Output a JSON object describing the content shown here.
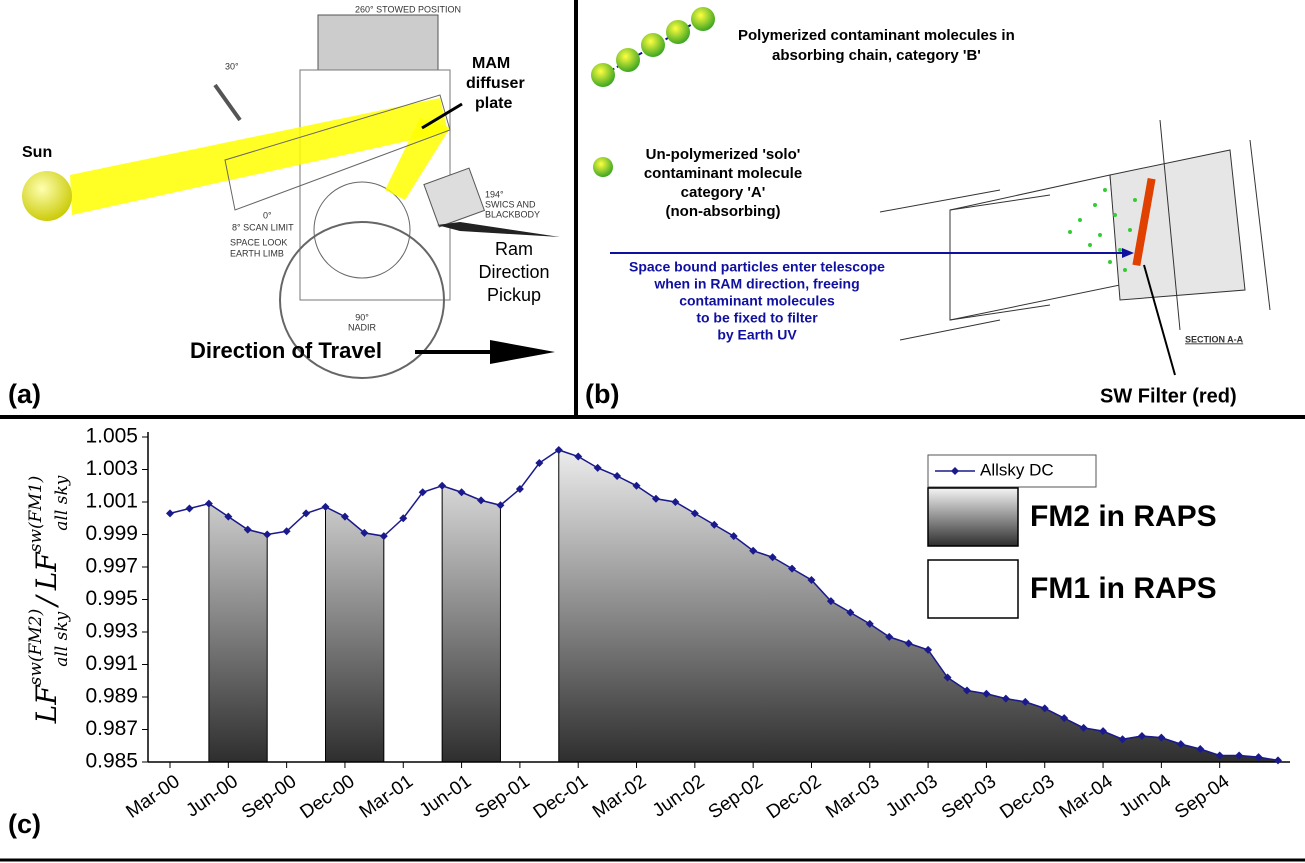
{
  "panels": {
    "a": {
      "label": "(a)",
      "sun": "Sun",
      "mam": [
        "MAM",
        "diffuser",
        "plate"
      ],
      "stowed": "260° STOWED POSITION",
      "angle30": "30°",
      "swics": [
        "194°",
        "SWICS AND",
        "BLACKBODY"
      ],
      "zero": "0°",
      "scan": "8° SCAN LIMIT",
      "space": "SPACE LOOK",
      "limb": "EARTH LIMB",
      "nadir": [
        "90°",
        "NADIR"
      ],
      "ram": [
        "Ram",
        "Direction",
        "Pickup"
      ],
      "travel": "Direction of Travel"
    },
    "b": {
      "label": "(b)",
      "poly": [
        "Polymerized contaminant molecules in",
        "absorbing chain, category 'B'"
      ],
      "solo": [
        "Un-polymerized 'solo'",
        "contaminant molecule",
        "category 'A'",
        "(non-absorbing)"
      ],
      "space": [
        "Space bound particles enter telescope",
        "when in RAM direction, freeing",
        "contaminant molecules",
        "to be fixed to filter",
        "by Earth UV"
      ],
      "filter": "SW Filter (red)",
      "section": "SECTION A-A"
    },
    "c": {
      "label": "(c)"
    }
  },
  "chart_data": {
    "type": "area-line",
    "y_label": {
      "main1": "LF",
      "sup1": "sw(FM2)",
      "sub1": "all sky",
      "sep": "/",
      "main2": "LF",
      "sup2": "sw(FM1)",
      "sub2": "all sky"
    },
    "categories": [
      "Mar-00",
      null,
      null,
      "Jun-00",
      null,
      null,
      "Sep-00",
      null,
      null,
      "Dec-00",
      null,
      null,
      "Mar-01",
      null,
      null,
      "Jun-01",
      null,
      null,
      "Sep-01",
      null,
      null,
      "Dec-01",
      null,
      null,
      "Mar-02",
      null,
      null,
      "Jun-02",
      null,
      null,
      "Sep-02",
      null,
      null,
      "Dec-02",
      null,
      null,
      "Mar-03",
      null,
      null,
      "Jun-03",
      null,
      null,
      "Sep-03",
      null,
      null,
      "Dec-03",
      null,
      null,
      "Mar-04",
      null,
      null,
      "Jun-04",
      null,
      null,
      "Sep-04",
      null,
      null,
      null
    ],
    "series": [
      {
        "name": "Allsky DC",
        "color": "#1a1a8c",
        "values": [
          1.0003,
          1.0006,
          1.0009,
          1.0001,
          0.9993,
          0.999,
          0.9992,
          1.0003,
          1.0007,
          1.0001,
          0.9991,
          0.9989,
          1.0,
          1.0016,
          1.002,
          1.0016,
          1.0011,
          1.0008,
          1.0018,
          1.0034,
          1.0042,
          1.0038,
          1.0031,
          1.0026,
          1.002,
          1.0012,
          1.001,
          1.0003,
          0.9996,
          0.9989,
          0.998,
          0.9976,
          0.9969,
          0.9962,
          0.9949,
          0.9942,
          0.9935,
          0.9927,
          0.9923,
          0.9919,
          0.9902,
          0.9894,
          0.9892,
          0.9889,
          0.9887,
          0.9883,
          0.9877,
          0.9871,
          0.9869,
          0.9864,
          0.9866,
          0.9865,
          0.9861,
          0.9858,
          0.9854,
          0.9854,
          0.9853,
          0.9851
        ]
      }
    ],
    "shaded_spans": [
      [
        2,
        5
      ],
      [
        8,
        11
      ],
      [
        14,
        17
      ],
      [
        20,
        57
      ]
    ],
    "regions": [
      {
        "name": "FM2 in RAPS",
        "fill": "gradient"
      },
      {
        "name": "FM1 in RAPS",
        "fill": "white"
      }
    ],
    "ylim": [
      0.985,
      1.005
    ],
    "yticks": [
      1.005,
      1.003,
      1.001,
      0.999,
      0.997,
      0.995,
      0.993,
      0.991,
      0.989,
      0.987,
      0.985
    ]
  }
}
